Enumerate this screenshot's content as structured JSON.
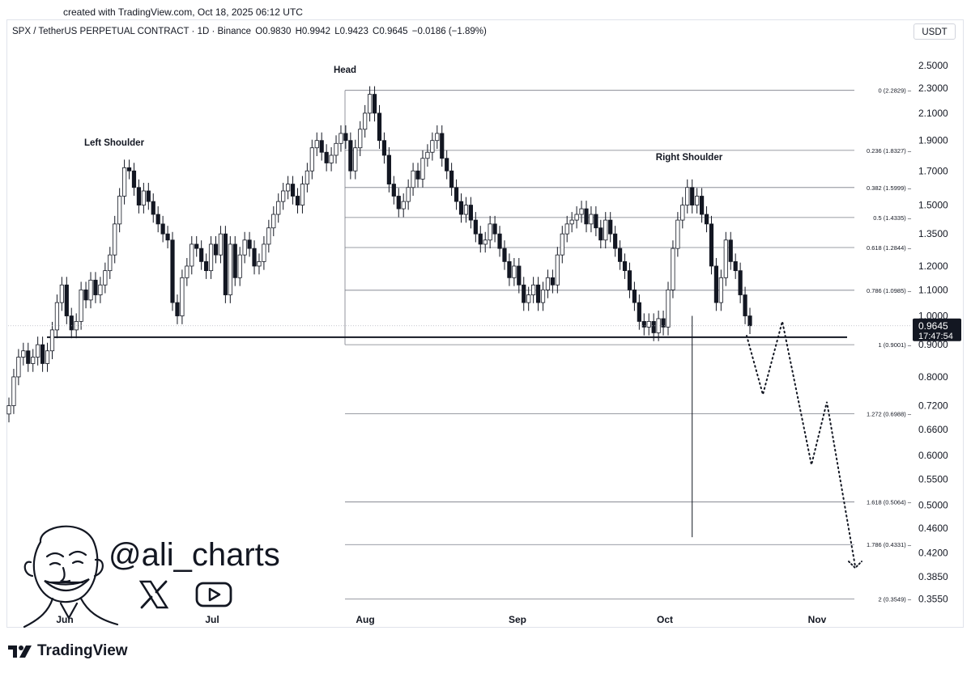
{
  "header": {
    "created_text": "created with TradingView.com, Oct 18, 2025 06:12 UTC"
  },
  "legend": {
    "symbol": "SPX / TetherUS PERPETUAL CONTRACT · 1D · Binance",
    "open": "O0.9830",
    "high": "H0.9942",
    "low": "L0.9423",
    "close": "C0.9645",
    "change": "−0.0186 (−1.89%)"
  },
  "price_scale": {
    "currency": "USDT",
    "last_price": "0.9645",
    "countdown": "17:47:54"
  },
  "branding": {
    "handle": "@ali_charts",
    "footer": "TradingView",
    "icons": [
      "x-logo-icon",
      "youtube-icon",
      "tradingview-logo-icon"
    ]
  },
  "chart_data": {
    "type": "candlestick",
    "scale": "log",
    "ylim": [
      0.34,
      2.7
    ],
    "y_ticks": [
      "2.5000",
      "2.3000",
      "2.1000",
      "1.9000",
      "1.7000",
      "1.5000",
      "1.3500",
      "1.2000",
      "1.1000",
      "1.0000",
      "0.9000",
      "0.8000",
      "0.7200",
      "0.6600",
      "0.6000",
      "0.5500",
      "0.5000",
      "0.4600",
      "0.4200",
      "0.3850",
      "0.3550"
    ],
    "x_ticks": [
      "Jun",
      "Jul",
      "Aug",
      "Sep",
      "Oct",
      "Nov"
    ],
    "annotations": [
      "Left Shoulder",
      "Head",
      "Right Shoulder"
    ],
    "neckline": 0.925,
    "fib_levels": [
      {
        "ratio": "0",
        "price": 2.2829,
        "label": "0 (2.2829)"
      },
      {
        "ratio": "0.236",
        "price": 1.8327,
        "label": "0.236 (1.8327)"
      },
      {
        "ratio": "0.382",
        "price": 1.5999,
        "label": "0.382 (1.5999)"
      },
      {
        "ratio": "0.5",
        "price": 1.4335,
        "label": "0.5 (1.4335)"
      },
      {
        "ratio": "0.618",
        "price": 1.2844,
        "label": "0.618 (1.2844)"
      },
      {
        "ratio": "0.786",
        "price": 1.0985,
        "label": "0.786 (1.0985)"
      },
      {
        "ratio": "1",
        "price": 0.9001,
        "label": "1 (0.9001)"
      },
      {
        "ratio": "1.272",
        "price": 0.6988,
        "label": "1.272 (0.6988)"
      },
      {
        "ratio": "1.618",
        "price": 0.5064,
        "label": "1.618 (0.5064)"
      },
      {
        "ratio": "1.786",
        "price": 0.4331,
        "label": "1.786 (0.4331)"
      },
      {
        "ratio": "2",
        "price": 0.3549,
        "label": "2 (0.3549)"
      }
    ],
    "projection": [
      0.93,
      0.75,
      0.98,
      0.58,
      0.73,
      0.4
    ],
    "closes": [
      0.72,
      0.8,
      0.86,
      0.88,
      0.84,
      0.86,
      0.9,
      0.84,
      0.88,
      0.95,
      1.05,
      1.12,
      1.0,
      0.95,
      0.98,
      1.1,
      1.06,
      1.14,
      1.08,
      1.12,
      1.18,
      1.25,
      1.4,
      1.55,
      1.72,
      1.7,
      1.6,
      1.5,
      1.58,
      1.52,
      1.45,
      1.4,
      1.35,
      1.32,
      1.05,
      1.0,
      1.15,
      1.2,
      1.3,
      1.28,
      1.22,
      1.18,
      1.3,
      1.25,
      1.35,
      1.08,
      1.3,
      1.15,
      1.25,
      1.32,
      1.28,
      1.2,
      1.22,
      1.3,
      1.38,
      1.45,
      1.52,
      1.58,
      1.62,
      1.55,
      1.5,
      1.62,
      1.7,
      1.85,
      1.9,
      1.82,
      1.75,
      1.8,
      1.88,
      1.95,
      1.9,
      1.7,
      1.85,
      1.98,
      2.1,
      2.25,
      2.1,
      1.9,
      1.8,
      1.62,
      1.55,
      1.48,
      1.52,
      1.6,
      1.7,
      1.65,
      1.78,
      1.82,
      1.9,
      1.95,
      1.78,
      1.7,
      1.6,
      1.52,
      1.45,
      1.5,
      1.42,
      1.35,
      1.3,
      1.32,
      1.4,
      1.35,
      1.28,
      1.22,
      1.15,
      1.2,
      1.12,
      1.05,
      1.08,
      1.12,
      1.05,
      1.1,
      1.15,
      1.12,
      1.25,
      1.35,
      1.4,
      1.42,
      1.45,
      1.48,
      1.4,
      1.45,
      1.38,
      1.32,
      1.42,
      1.35,
      1.28,
      1.22,
      1.18,
      1.1,
      1.05,
      0.98,
      0.96,
      0.98,
      0.94,
      0.99,
      0.96,
      1.1,
      1.28,
      1.42,
      1.5,
      1.6,
      1.5,
      1.55,
      1.45,
      1.4,
      1.2,
      1.05,
      1.15,
      1.32,
      1.22,
      1.18,
      1.08,
      1.0,
      0.9645
    ]
  }
}
